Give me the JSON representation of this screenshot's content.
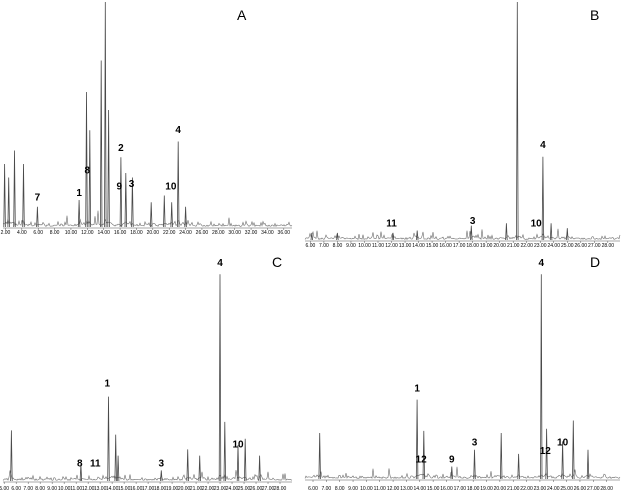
{
  "chart_data": [
    {
      "type": "line",
      "panel": "A",
      "x_ticks": [
        "2.00",
        "4.00",
        "6.00",
        "8.00",
        "10.00",
        "12.00",
        "14.00",
        "16.00",
        "18.00",
        "20.00",
        "22.00",
        "24.00",
        "26.00",
        "28.00",
        "30.00",
        "32.00",
        "34.00",
        "36.00"
      ],
      "xlim": [
        1.7,
        37.0
      ],
      "ylim": [
        0,
        100
      ],
      "peaks": [
        {
          "label": "7",
          "x": 5.9,
          "y": 10
        },
        {
          "label": "1",
          "x": 11.0,
          "y": 12
        },
        {
          "label": "8",
          "x": 12.0,
          "y": 22
        },
        {
          "label": "2",
          "x": 16.1,
          "y": 32
        },
        {
          "label": "9",
          "x": 15.9,
          "y": 15
        },
        {
          "label": "3",
          "x": 17.4,
          "y": 16
        },
        {
          "label": "10",
          "x": 22.2,
          "y": 15
        },
        {
          "label": "4",
          "x": 23.1,
          "y": 40
        }
      ],
      "spikes": [
        {
          "x": 1.9,
          "y": 28
        },
        {
          "x": 2.4,
          "y": 22
        },
        {
          "x": 3.1,
          "y": 34
        },
        {
          "x": 4.2,
          "y": 28
        },
        {
          "x": 5.9,
          "y": 9
        },
        {
          "x": 11.0,
          "y": 12
        },
        {
          "x": 11.9,
          "y": 60
        },
        {
          "x": 12.3,
          "y": 43
        },
        {
          "x": 13.7,
          "y": 74
        },
        {
          "x": 14.2,
          "y": 100
        },
        {
          "x": 14.6,
          "y": 52
        },
        {
          "x": 16.1,
          "y": 31
        },
        {
          "x": 16.7,
          "y": 24
        },
        {
          "x": 17.5,
          "y": 22
        },
        {
          "x": 19.8,
          "y": 11
        },
        {
          "x": 21.4,
          "y": 14
        },
        {
          "x": 22.3,
          "y": 11
        },
        {
          "x": 23.1,
          "y": 38
        },
        {
          "x": 24.0,
          "y": 9
        }
      ]
    },
    {
      "type": "line",
      "panel": "B",
      "x_ticks": [
        "6.00",
        "7.00",
        "8.00",
        "9.00",
        "10.00",
        "11.00",
        "12.00",
        "13.00",
        "14.00",
        "15.00",
        "16.00",
        "17.00",
        "18.00",
        "19.00",
        "20.00",
        "21.00",
        "22.00",
        "23.00",
        "24.00",
        "25.00",
        "26.00",
        "27.00",
        "28.00"
      ],
      "xlim": [
        5.6,
        28.9
      ],
      "ylim": [
        0,
        100
      ],
      "peaks": [
        {
          "label": "11",
          "x": 12.0,
          "y": 4
        },
        {
          "label": "3",
          "x": 18.0,
          "y": 5
        },
        {
          "label": "10",
          "x": 22.7,
          "y": 4
        },
        {
          "label": "4",
          "x": 23.2,
          "y": 37
        }
      ],
      "spikes": [
        {
          "x": 6.1,
          "y": 3
        },
        {
          "x": 8.0,
          "y": 3
        },
        {
          "x": 12.1,
          "y": 3
        },
        {
          "x": 13.9,
          "y": 4
        },
        {
          "x": 17.9,
          "y": 6
        },
        {
          "x": 20.5,
          "y": 7
        },
        {
          "x": 21.3,
          "y": 100
        },
        {
          "x": 23.2,
          "y": 35
        },
        {
          "x": 23.8,
          "y": 7
        },
        {
          "x": 25.0,
          "y": 5
        }
      ]
    },
    {
      "type": "line",
      "panel": "C",
      "x_ticks": [
        "5.00",
        "6.00",
        "7.00",
        "8.00",
        "9.00",
        "10.00",
        "11.00",
        "12.00",
        "13.00",
        "14.00",
        "15.00",
        "16.00",
        "17.00",
        "18.00",
        "19.00",
        "20.00",
        "21.00",
        "22.00",
        "23.00",
        "24.00",
        "25.00",
        "26.00",
        "27.00",
        "28.00"
      ],
      "xlim": [
        4.9,
        29.0
      ],
      "ylim": [
        0,
        100
      ],
      "peaks": [
        {
          "label": "8",
          "x": 11.3,
          "y": 5
        },
        {
          "label": "11",
          "x": 12.6,
          "y": 5
        },
        {
          "label": "1",
          "x": 13.6,
          "y": 43
        },
        {
          "label": "3",
          "x": 18.1,
          "y": 5
        },
        {
          "label": "4",
          "x": 23.0,
          "y": 100
        },
        {
          "label": "10",
          "x": 24.5,
          "y": 14
        }
      ],
      "spikes": [
        {
          "x": 5.6,
          "y": 24
        },
        {
          "x": 11.4,
          "y": 8
        },
        {
          "x": 13.7,
          "y": 40
        },
        {
          "x": 14.3,
          "y": 22
        },
        {
          "x": 14.5,
          "y": 12
        },
        {
          "x": 18.1,
          "y": 5
        },
        {
          "x": 20.3,
          "y": 15
        },
        {
          "x": 21.3,
          "y": 12
        },
        {
          "x": 23.0,
          "y": 98
        },
        {
          "x": 23.4,
          "y": 28
        },
        {
          "x": 24.5,
          "y": 17
        },
        {
          "x": 25.1,
          "y": 20
        },
        {
          "x": 26.3,
          "y": 12
        }
      ]
    },
    {
      "type": "line",
      "panel": "D",
      "x_ticks": [
        "6.00",
        "7.00",
        "8.00",
        "9.00",
        "10.00",
        "11.00",
        "12.00",
        "13.00",
        "14.00",
        "15.00",
        "16.00",
        "17.00",
        "18.00",
        "19.00",
        "20.00",
        "21.00",
        "22.00",
        "23.00",
        "24.00",
        "25.00",
        "26.00",
        "27.00",
        "28.00"
      ],
      "xlim": [
        5.4,
        29.0
      ],
      "ylim": [
        0,
        100
      ],
      "peaks": [
        {
          "label": "1",
          "x": 13.8,
          "y": 40
        },
        {
          "label": "12",
          "x": 14.1,
          "y": 6
        },
        {
          "label": "9",
          "x": 16.4,
          "y": 6
        },
        {
          "label": "3",
          "x": 18.1,
          "y": 14
        },
        {
          "label": "4",
          "x": 23.1,
          "y": 100
        },
        {
          "label": "12",
          "x": 23.4,
          "y": 10
        },
        {
          "label": "10",
          "x": 24.7,
          "y": 14
        }
      ],
      "spikes": [
        {
          "x": 6.5,
          "y": 22
        },
        {
          "x": 13.8,
          "y": 38
        },
        {
          "x": 14.3,
          "y": 23
        },
        {
          "x": 16.4,
          "y": 6
        },
        {
          "x": 18.1,
          "y": 14
        },
        {
          "x": 20.1,
          "y": 22
        },
        {
          "x": 21.4,
          "y": 12
        },
        {
          "x": 23.1,
          "y": 98
        },
        {
          "x": 23.5,
          "y": 24
        },
        {
          "x": 24.7,
          "y": 18
        },
        {
          "x": 25.5,
          "y": 28
        },
        {
          "x": 26.6,
          "y": 14
        }
      ]
    }
  ]
}
